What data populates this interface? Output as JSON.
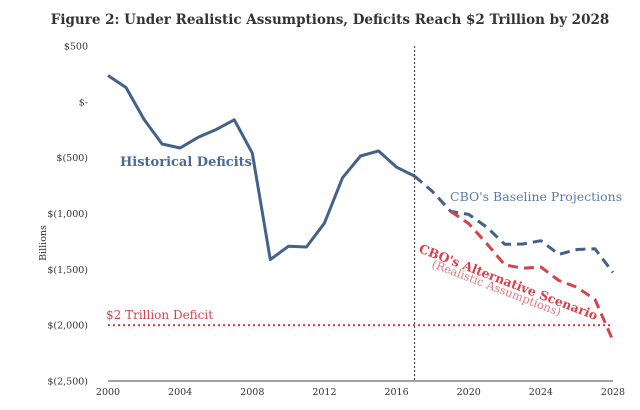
{
  "chart_data": {
    "type": "line",
    "title": "Figure 2: Under Realistic Assumptions, Deficits Reach $2 Trillion by 2028",
    "ylabel": "Billions",
    "xlim": [
      2000,
      2028
    ],
    "ylim": [
      -2500,
      500
    ],
    "x_ticks": [
      2000,
      2004,
      2008,
      2012,
      2016,
      2020,
      2024,
      2028
    ],
    "y_ticks": [
      {
        "value": 500,
        "label": "$500"
      },
      {
        "value": 0,
        "label": "$-"
      },
      {
        "value": -500,
        "label": "$(500)"
      },
      {
        "value": -1000,
        "label": "$(1,000)"
      },
      {
        "value": -1500,
        "label": "$(1,500)"
      },
      {
        "value": -2000,
        "label": "$(2,000)"
      },
      {
        "value": -2500,
        "label": "$(2,500)"
      }
    ],
    "vertical_marker": 2017,
    "reference_line": {
      "value": -2000,
      "label": "$2 Trillion Deficit"
    },
    "series": [
      {
        "label": "Historical Deficits",
        "color": "#44618a",
        "style": "solid",
        "points": [
          [
            2000,
            236
          ],
          [
            2001,
            128
          ],
          [
            2002,
            -158
          ],
          [
            2003,
            -378
          ],
          [
            2004,
            -413
          ],
          [
            2005,
            -318
          ],
          [
            2006,
            -248
          ],
          [
            2007,
            -161
          ],
          [
            2008,
            -459
          ],
          [
            2009,
            -1413
          ],
          [
            2010,
            -1294
          ],
          [
            2011,
            -1300
          ],
          [
            2012,
            -1087
          ],
          [
            2013,
            -680
          ],
          [
            2014,
            -485
          ],
          [
            2015,
            -439
          ],
          [
            2016,
            -585
          ],
          [
            2017,
            -665
          ]
        ]
      },
      {
        "label": "CBO's Baseline Projections",
        "color": "#44618a",
        "style": "dashed",
        "points": [
          [
            2017,
            -665
          ],
          [
            2018,
            -804
          ],
          [
            2019,
            -981
          ],
          [
            2020,
            -1008
          ],
          [
            2021,
            -1123
          ],
          [
            2022,
            -1276
          ],
          [
            2023,
            -1273
          ],
          [
            2024,
            -1244
          ],
          [
            2025,
            -1366
          ],
          [
            2026,
            -1322
          ],
          [
            2027,
            -1316
          ],
          [
            2028,
            -1528
          ]
        ]
      },
      {
        "label": "CBO's Alternative Scenario",
        "sublabel": "(Realistic Assumptions)",
        "color": "#d9414a",
        "style": "dashed",
        "points": [
          [
            2019,
            -981
          ],
          [
            2020,
            -1090
          ],
          [
            2021,
            -1270
          ],
          [
            2022,
            -1460
          ],
          [
            2023,
            -1490
          ],
          [
            2024,
            -1480
          ],
          [
            2025,
            -1600
          ],
          [
            2026,
            -1660
          ],
          [
            2027,
            -1770
          ],
          [
            2028,
            -2140
          ]
        ]
      }
    ]
  }
}
